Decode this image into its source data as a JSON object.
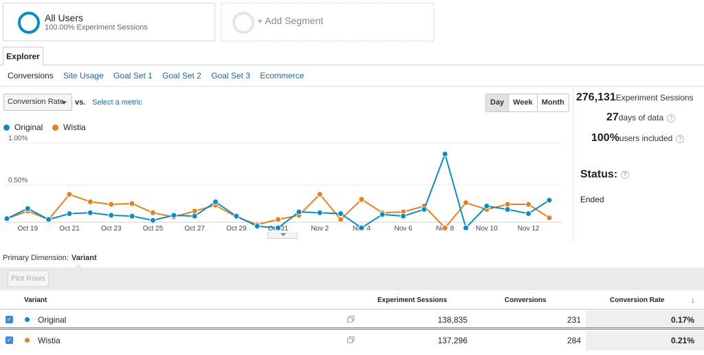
{
  "segments": {
    "all_users": {
      "title": "All Users",
      "subtitle": "100.00% Experiment Sessions"
    },
    "add_segment": "+ Add Segment"
  },
  "tabs": {
    "explorer": "Explorer"
  },
  "subtabs": [
    "Conversions",
    "Site Usage",
    "Goal Set 1",
    "Goal Set 2",
    "Goal Set 3",
    "Ecommerce"
  ],
  "metric": {
    "selected": "Conversion Rate",
    "vs": "vs.",
    "select_metric": "Select a metric"
  },
  "granularity": [
    "Day",
    "Week",
    "Month"
  ],
  "legend": {
    "original": "Original",
    "wistia": "Wistia"
  },
  "colors": {
    "original": "#058dc7",
    "wistia": "#ed7e17"
  },
  "stats": {
    "sessions_value": "276,131",
    "sessions_label": "Experiment Sessions",
    "days_value": "27",
    "days_label": "days of data",
    "users_value": "100%",
    "users_label": "users included",
    "status_label": "Status:",
    "status_value": "Ended"
  },
  "chart_data": {
    "type": "line",
    "x": [
      "Oct 18",
      "Oct 19",
      "Oct 20",
      "Oct 21",
      "Oct 22",
      "Oct 23",
      "Oct 24",
      "Oct 25",
      "Oct 26",
      "Oct 27",
      "Oct 28",
      "Oct 29",
      "Oct 30",
      "Oct 31",
      "Nov 1",
      "Nov 2",
      "Nov 3",
      "Nov 4",
      "Nov 5",
      "Nov 6",
      "Nov 7",
      "Nov 8",
      "Nov 9",
      "Nov 10",
      "Nov 11",
      "Nov 12",
      "Nov 13"
    ],
    "tick_labels": [
      "Oct 19",
      "Oct 21",
      "Oct 23",
      "Oct 25",
      "Oct 27",
      "Oct 29",
      "Oct 31",
      "Nov 2",
      "Nov 4",
      "Nov 6",
      "Nov 8",
      "Nov 10",
      "Nov 12"
    ],
    "ytick_labels": [
      "1.00%",
      "0.50%"
    ],
    "ylim": [
      0,
      1.0
    ],
    "series": [
      {
        "name": "Original",
        "values": [
          0.1,
          0.22,
          0.09,
          0.16,
          0.17,
          0.14,
          0.13,
          0.08,
          0.14,
          0.13,
          0.3,
          0.13,
          0.01,
          -0.01,
          0.18,
          0.17,
          0.16,
          -0.01,
          0.15,
          0.13,
          0.21,
          0.87,
          -0.01,
          0.25,
          0.21,
          0.16,
          0.32
        ]
      },
      {
        "name": "Wistia",
        "values": [
          0.1,
          0.19,
          0.09,
          0.39,
          0.3,
          0.27,
          0.28,
          0.17,
          0.12,
          0.19,
          0.26,
          0.12,
          0.03,
          0.09,
          0.14,
          0.39,
          0.09,
          0.33,
          0.17,
          0.18,
          0.25,
          -0.01,
          0.29,
          0.21,
          0.27,
          0.27,
          0.11
        ]
      }
    ]
  },
  "dimension": {
    "label": "Primary Dimension:",
    "value": "Variant"
  },
  "plot_rows": "Plot Rows",
  "table": {
    "headers": {
      "variant": "Variant",
      "sessions": "Experiment Sessions",
      "conversions": "Conversions",
      "rate": "Conversion Rate"
    },
    "rows": [
      {
        "name": "Original",
        "sessions": "138,835",
        "conversions": "231",
        "rate": "0.17%"
      },
      {
        "name": "Wistia",
        "sessions": "137,296",
        "conversions": "284",
        "rate": "0.21%"
      }
    ]
  }
}
